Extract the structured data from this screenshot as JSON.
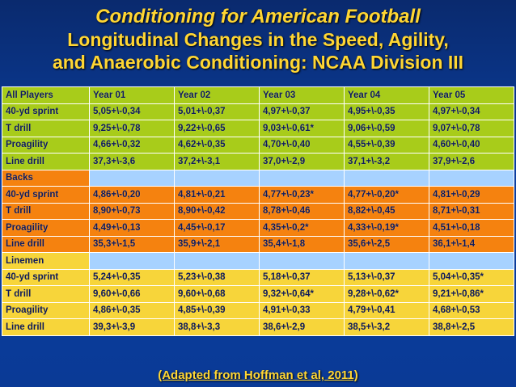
{
  "title": {
    "line1": "Conditioning for American Football",
    "line2": "Longitudinal Changes in the Speed, Agility,",
    "line3": "and Anaerobic Conditioning: NCAA Division III"
  },
  "table": {
    "header": [
      "All Players",
      "Year 01",
      "Year 02",
      "Year 03",
      "Year 04",
      "Year 05"
    ],
    "all_players": [
      [
        "40-yd sprint",
        "5,05+\\-0,34",
        "5,01+\\-0,37",
        "4,97+\\-0,37",
        "4,95+\\-0,35",
        "4,97+\\-0,34"
      ],
      [
        "T drill",
        "9,25+\\-0,78",
        "9,22+\\-0,65",
        "9,03+\\-0,61*",
        "9,06+\\-0,59",
        "9,07+\\-0,78"
      ],
      [
        "Proagility",
        "4,66+\\-0,32",
        "4,62+\\-0,35",
        "4,70+\\-0,40",
        "4,55+\\-0,39",
        "4,60+\\-0,40"
      ],
      [
        "Line drill",
        "37,3+\\-3,6",
        "37,2+\\-3,1",
        "37,0+\\-2,9",
        "37,1+\\-3,2",
        "37,9+\\-2,6"
      ]
    ],
    "backs_label": "Backs",
    "backs": [
      [
        "40-yd sprint",
        "4,86+\\-0,20",
        "4,81+\\-0,21",
        "4,77+\\-0,23*",
        "4,77+\\-0,20*",
        "4,81+\\-0,29"
      ],
      [
        "T drill",
        "8,90+\\-0,73",
        "8,90+\\-0,42",
        "8,78+\\-0,46",
        "8,82+\\-0,45",
        "8,71+\\-0,31"
      ],
      [
        "Proagility",
        "4,49+\\-0,13",
        "4,45+\\-0,17",
        "4,35+\\-0,2*",
        "4,33+\\-0,19*",
        "4,51+\\-0,18"
      ],
      [
        "Line drill",
        "35,3+\\-1,5",
        "35,9+\\-2,1",
        "35,4+\\-1,8",
        "35,6+\\-2,5",
        "36,1+\\-1,4"
      ]
    ],
    "linemen_label": "Linemen",
    "linemen": [
      [
        "40-yd sprint",
        "5,24+\\-0,35",
        "5,23+\\-0,38",
        "5,18+\\-0,37",
        "5,13+\\-0,37",
        "5,04+\\-0,35*"
      ],
      [
        "T drill",
        "9,60+\\-0,66",
        "9,60+\\-0,68",
        "9,32+\\-0,64*",
        "9,28+\\-0,62*",
        "9,21+\\-0,86*"
      ],
      [
        "Proagility",
        "4,86+\\-0,35",
        "4,85+\\-0,39",
        "4,91+\\-0,33",
        "4,79+\\-0,41",
        "4,68+\\-0,53"
      ],
      [
        "Line drill",
        "39,3+\\-3,9",
        "38,8+\\-3,3",
        "38,6+\\-2,9",
        "38,5+\\-3,2",
        "38,8+\\-2,5"
      ]
    ]
  },
  "caption": "(Adapted from Hoffman et al, 2011)",
  "colors": {
    "background": "#0b3fa0",
    "title": "#ffd633",
    "all_players_rows": "#a8cc1a",
    "backs_rows": "#f5820f",
    "linemen_rows": "#f7d53a",
    "section_rows": "#a7d2ff"
  }
}
